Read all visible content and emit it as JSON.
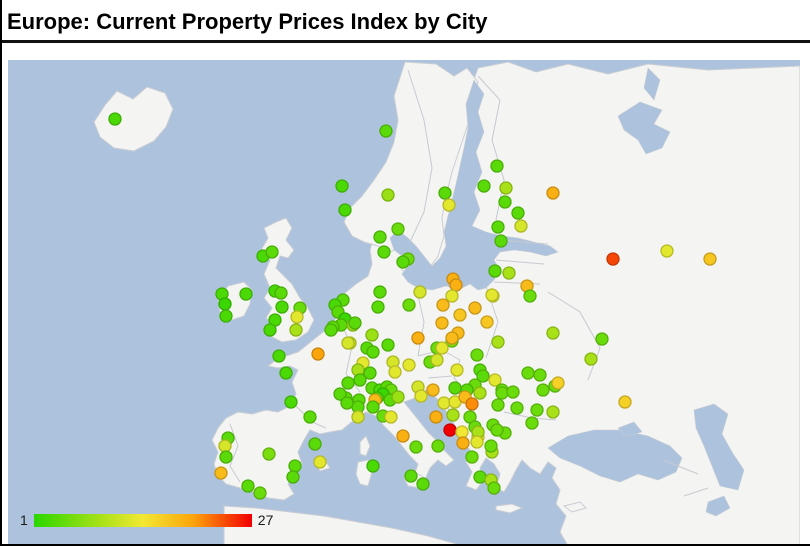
{
  "page": {
    "title": "Europe: Current Property Prices Index by City"
  },
  "legend": {
    "min_label": "1",
    "max_label": "27"
  },
  "map": {
    "water_color": "#adc2dd",
    "land_color": "#f4f4f2",
    "coast_color": "#c9cdd3",
    "border_color": "#c6cad0"
  },
  "chart_data": {
    "type": "scatter",
    "subtype": "geochart-markers",
    "title": "Europe: Current Property Prices Index by City",
    "region": "Europe",
    "legend_position": "bottom-left",
    "color_axis": {
      "min": 1,
      "max": 27,
      "stops": [
        {
          "value": 1,
          "color": "#2bd600"
        },
        {
          "value": 8,
          "color": "#9ae014"
        },
        {
          "value": 14,
          "color": "#f2e833"
        },
        {
          "value": 20,
          "color": "#fca40c"
        },
        {
          "value": 27,
          "color": "#f20000"
        }
      ]
    },
    "marker_radius": 6,
    "point_format": [
      "x_px",
      "y_px",
      "index_value"
    ],
    "points": [
      [
        107,
        59,
        3
      ],
      [
        378,
        71,
        4
      ],
      [
        334,
        126,
        3
      ],
      [
        337,
        150,
        3
      ],
      [
        380,
        135,
        8
      ],
      [
        437,
        133,
        4
      ],
      [
        441,
        145,
        13
      ],
      [
        489,
        106,
        4
      ],
      [
        476,
        126,
        4
      ],
      [
        498,
        128,
        9
      ],
      [
        497,
        142,
        4
      ],
      [
        510,
        153,
        4
      ],
      [
        545,
        133,
        19
      ],
      [
        605,
        199,
        24
      ],
      [
        659,
        191,
        13
      ],
      [
        702,
        199,
        17
      ],
      [
        490,
        167,
        4
      ],
      [
        513,
        166,
        12
      ],
      [
        493,
        181,
        4
      ],
      [
        487,
        211,
        4
      ],
      [
        501,
        213,
        9
      ],
      [
        485,
        236,
        13
      ],
      [
        519,
        226,
        18
      ],
      [
        522,
        236,
        5
      ],
      [
        390,
        169,
        5
      ],
      [
        372,
        177,
        4
      ],
      [
        376,
        192,
        4
      ],
      [
        400,
        199,
        5
      ],
      [
        395,
        202,
        4
      ],
      [
        214,
        234,
        3
      ],
      [
        238,
        234,
        3
      ],
      [
        217,
        244,
        2
      ],
      [
        218,
        256,
        3
      ],
      [
        255,
        196,
        3
      ],
      [
        264,
        192,
        4
      ],
      [
        267,
        231,
        3
      ],
      [
        273,
        233,
        4
      ],
      [
        274,
        247,
        3
      ],
      [
        267,
        260,
        3
      ],
      [
        262,
        270,
        3
      ],
      [
        292,
        248,
        5
      ],
      [
        289,
        257,
        13
      ],
      [
        288,
        270,
        9
      ],
      [
        335,
        240,
        4
      ],
      [
        327,
        245,
        3
      ],
      [
        330,
        252,
        4
      ],
      [
        337,
        259,
        2
      ],
      [
        333,
        265,
        4
      ],
      [
        345,
        265,
        8
      ],
      [
        325,
        267,
        4
      ],
      [
        323,
        270,
        4
      ],
      [
        342,
        283,
        11
      ],
      [
        372,
        232,
        4
      ],
      [
        370,
        247,
        4
      ],
      [
        401,
        245,
        5
      ],
      [
        412,
        232,
        12
      ],
      [
        445,
        219,
        19
      ],
      [
        448,
        225,
        19
      ],
      [
        444,
        236,
        13
      ],
      [
        484,
        235,
        13
      ],
      [
        435,
        245,
        18
      ],
      [
        467,
        248,
        18
      ],
      [
        452,
        255,
        17
      ],
      [
        434,
        263,
        18
      ],
      [
        479,
        262,
        17
      ],
      [
        347,
        263,
        4
      ],
      [
        364,
        275,
        8
      ],
      [
        340,
        283,
        12
      ],
      [
        359,
        288,
        4
      ],
      [
        365,
        292,
        4
      ],
      [
        380,
        285,
        4
      ],
      [
        355,
        303,
        13
      ],
      [
        350,
        310,
        9
      ],
      [
        362,
        313,
        4
      ],
      [
        352,
        320,
        4
      ],
      [
        385,
        302,
        12
      ],
      [
        387,
        312,
        13
      ],
      [
        401,
        305,
        13
      ],
      [
        410,
        278,
        19
      ],
      [
        429,
        288,
        5
      ],
      [
        444,
        281,
        6
      ],
      [
        422,
        302,
        5
      ],
      [
        429,
        300,
        12
      ],
      [
        490,
        282,
        9
      ],
      [
        545,
        273,
        9
      ],
      [
        594,
        279,
        5
      ],
      [
        583,
        299,
        9
      ],
      [
        547,
        326,
        5
      ],
      [
        617,
        342,
        16
      ],
      [
        450,
        273,
        18
      ],
      [
        444,
        278,
        18
      ],
      [
        434,
        288,
        13
      ],
      [
        449,
        310,
        13
      ],
      [
        469,
        295,
        5
      ],
      [
        472,
        310,
        4
      ],
      [
        475,
        316,
        4
      ],
      [
        487,
        320,
        13
      ],
      [
        467,
        325,
        5
      ],
      [
        447,
        328,
        4
      ],
      [
        459,
        330,
        4
      ],
      [
        472,
        333,
        9
      ],
      [
        494,
        330,
        5
      ],
      [
        520,
        313,
        5
      ],
      [
        532,
        315,
        5
      ],
      [
        550,
        323,
        16
      ],
      [
        535,
        330,
        5
      ],
      [
        494,
        333,
        5
      ],
      [
        505,
        332,
        5
      ],
      [
        545,
        352,
        9
      ],
      [
        490,
        345,
        5
      ],
      [
        509,
        348,
        5
      ],
      [
        529,
        350,
        5
      ],
      [
        524,
        363,
        5
      ],
      [
        485,
        365,
        5
      ],
      [
        470,
        377,
        13
      ],
      [
        497,
        373,
        5
      ],
      [
        484,
        392,
        9
      ],
      [
        464,
        397,
        5
      ],
      [
        410,
        327,
        12
      ],
      [
        413,
        336,
        13
      ],
      [
        425,
        330,
        18
      ],
      [
        436,
        343,
        13
      ],
      [
        447,
        342,
        13
      ],
      [
        457,
        337,
        18
      ],
      [
        464,
        344,
        21
      ],
      [
        428,
        357,
        19
      ],
      [
        442,
        370,
        27
      ],
      [
        454,
        372,
        14
      ],
      [
        445,
        355,
        9
      ],
      [
        462,
        357,
        5
      ],
      [
        467,
        367,
        5
      ],
      [
        470,
        372,
        9
      ],
      [
        455,
        383,
        19
      ],
      [
        469,
        382,
        13
      ],
      [
        489,
        370,
        5
      ],
      [
        483,
        386,
        5
      ],
      [
        472,
        417,
        4
      ],
      [
        483,
        420,
        9
      ],
      [
        486,
        428,
        5
      ],
      [
        340,
        323,
        4
      ],
      [
        364,
        328,
        4
      ],
      [
        372,
        330,
        3
      ],
      [
        379,
        327,
        4
      ],
      [
        383,
        330,
        5
      ],
      [
        375,
        334,
        2
      ],
      [
        369,
        338,
        3
      ],
      [
        382,
        340,
        4
      ],
      [
        367,
        340,
        18
      ],
      [
        351,
        340,
        4
      ],
      [
        338,
        338,
        4
      ],
      [
        332,
        334,
        4
      ],
      [
        390,
        337,
        8
      ],
      [
        350,
        347,
        4
      ],
      [
        365,
        347,
        4
      ],
      [
        339,
        343,
        4
      ],
      [
        350,
        357,
        12
      ],
      [
        375,
        356,
        5
      ],
      [
        383,
        357,
        13
      ],
      [
        395,
        376,
        19
      ],
      [
        408,
        387,
        5
      ],
      [
        430,
        386,
        5
      ],
      [
        365,
        406,
        3
      ],
      [
        403,
        416,
        4
      ],
      [
        415,
        424,
        4
      ],
      [
        310,
        294,
        20
      ],
      [
        271,
        296,
        3
      ],
      [
        278,
        313,
        3
      ],
      [
        283,
        342,
        3
      ],
      [
        302,
        357,
        4
      ],
      [
        307,
        384,
        4
      ],
      [
        220,
        378,
        4
      ],
      [
        217,
        386,
        12
      ],
      [
        218,
        397,
        4
      ],
      [
        213,
        413,
        18
      ],
      [
        261,
        394,
        6
      ],
      [
        240,
        426,
        4
      ],
      [
        252,
        433,
        5
      ],
      [
        287,
        406,
        4
      ],
      [
        285,
        417,
        4
      ],
      [
        312,
        402,
        13
      ]
    ]
  }
}
